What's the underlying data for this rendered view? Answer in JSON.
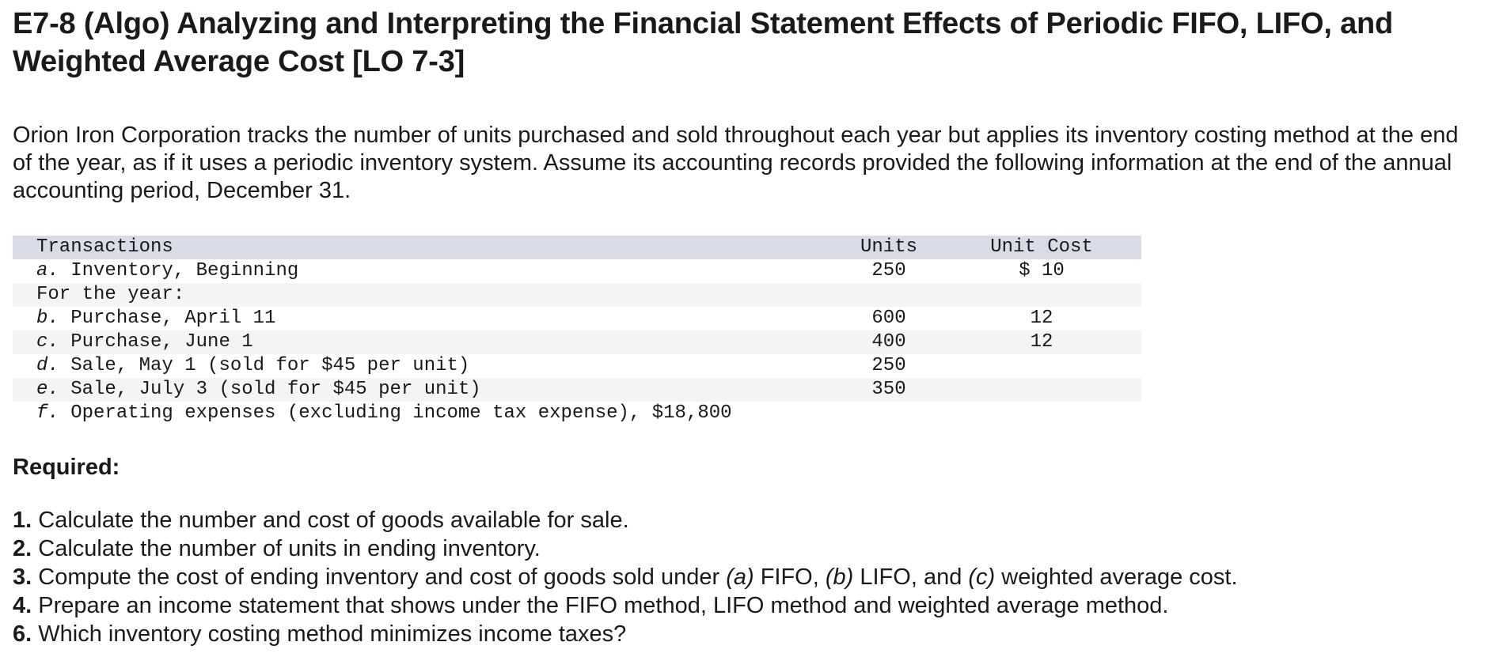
{
  "title": "E7-8 (Algo) Analyzing and Interpreting the Financial Statement Effects of Periodic FIFO, LIFO, and Weighted Average Cost [LO 7-3]",
  "intro": "Orion Iron Corporation tracks the number of units purchased and sold throughout each year but applies its inventory costing method at the end of the year, as if it uses a periodic inventory system. Assume its accounting records provided the following information at the end of the annual accounting period, December 31.",
  "table": {
    "headers": {
      "transactions": "Transactions",
      "units": "Units",
      "unit_cost": "Unit Cost"
    },
    "rows": [
      {
        "letter": "a.",
        "description": " Inventory, Beginning",
        "units": "250",
        "unit_cost": "$ 10"
      },
      {
        "letter": "",
        "description": "For the year:",
        "units": "",
        "unit_cost": ""
      },
      {
        "letter": "b.",
        "description": " Purchase, April 11",
        "units": "600",
        "unit_cost": "12"
      },
      {
        "letter": "c.",
        "description": " Purchase, June 1",
        "units": "400",
        "unit_cost": "12"
      },
      {
        "letter": "d.",
        "description": " Sale, May 1 (sold for $45 per unit)",
        "units": "250",
        "unit_cost": ""
      },
      {
        "letter": "e.",
        "description": " Sale, July 3 (sold for $45 per unit)",
        "units": "350",
        "unit_cost": ""
      },
      {
        "letter": "f.",
        "description": " Operating expenses (excluding income tax expense), $18,800",
        "units": "",
        "unit_cost": ""
      }
    ]
  },
  "required": {
    "heading": "Required:",
    "items": [
      {
        "num": "1.",
        "text": " Calculate the number and cost of goods available for sale."
      },
      {
        "num": "2.",
        "text": " Calculate the number of units in ending inventory."
      },
      {
        "num": "3.",
        "pre": " Compute the cost of ending inventory and cost of goods sold under ",
        "a": "(a)",
        "mid1": " FIFO, ",
        "b": "(b)",
        "mid2": " LIFO, and ",
        "c": "(c)",
        "post": " weighted average cost."
      },
      {
        "num": "4.",
        "text": " Prepare an income statement that shows under the FIFO method, LIFO method and weighted average method."
      },
      {
        "num": "6.",
        "text": " Which inventory costing method minimizes income taxes?"
      }
    ]
  }
}
